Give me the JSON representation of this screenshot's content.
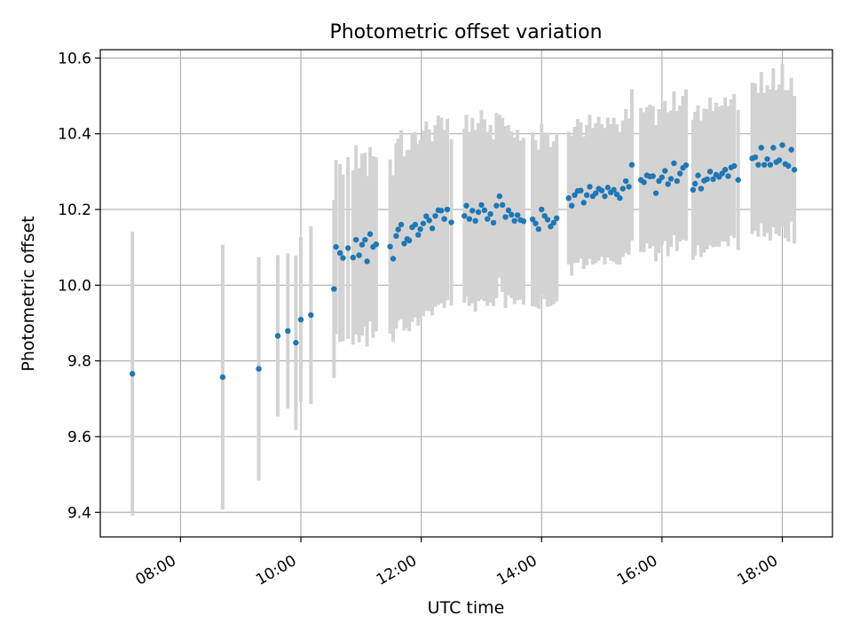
{
  "chart_data": {
    "type": "scatter",
    "title": "Photometric offset variation",
    "xlabel": "UTC time",
    "ylabel": "Photometric offset",
    "x_unit": "hours UTC",
    "xlim": [
      "06:40",
      "18:50"
    ],
    "ylim": [
      9.335,
      10.622
    ],
    "xticks": [
      "08:00",
      "10:00",
      "12:00",
      "14:00",
      "16:00",
      "18:00"
    ],
    "yticks": [
      "9.4",
      "9.6",
      "9.8",
      "10.0",
      "10.2",
      "10.4",
      "10.6"
    ],
    "grid": true,
    "colors": {
      "point": "#1f77b4",
      "errorbar": "#d3d3d3",
      "grid": "#b0b0b0"
    },
    "series": [
      {
        "x": [
          "07:12",
          "08:42",
          "09:18",
          "09:37",
          "09:47",
          "09:55",
          "10:00",
          "10:10",
          "10:33",
          "10:35",
          "10:39",
          "10:42",
          "10:47",
          "10:52",
          "10:55",
          "10:58",
          "11:01",
          "11:04",
          "11:06",
          "11:09",
          "11:12",
          "11:15",
          "11:29",
          "11:32",
          "11:35",
          "11:37",
          "11:40",
          "11:43",
          "11:46",
          "11:48",
          "11:51",
          "11:54",
          "11:57",
          "11:59",
          "12:02",
          "12:05",
          "12:08",
          "12:11",
          "12:14",
          "12:17",
          "12:20",
          "12:23",
          "12:26",
          "12:30",
          "12:43",
          "12:45",
          "12:48",
          "12:51",
          "12:54",
          "12:57",
          "13:00",
          "13:03",
          "13:06",
          "13:09",
          "13:12",
          "13:15",
          "13:18",
          "13:21",
          "13:24",
          "13:27",
          "13:30",
          "13:33",
          "13:36",
          "13:39",
          "13:42",
          "13:51",
          "13:54",
          "13:57",
          "14:00",
          "14:03",
          "14:06",
          "14:09",
          "14:12",
          "14:15",
          "14:27",
          "14:30",
          "14:33",
          "14:36",
          "14:39",
          "14:42",
          "14:45",
          "14:48",
          "14:51",
          "14:54",
          "14:57",
          "15:00",
          "15:03",
          "15:06",
          "15:09",
          "15:12",
          "15:15",
          "15:18",
          "15:21",
          "15:24",
          "15:27",
          "15:30",
          "15:39",
          "15:42",
          "15:45",
          "15:48",
          "15:51",
          "15:54",
          "15:57",
          "16:00",
          "16:03",
          "16:06",
          "16:09",
          "16:12",
          "16:15",
          "16:18",
          "16:21",
          "16:24",
          "16:31",
          "16:33",
          "16:36",
          "16:39",
          "16:42",
          "16:45",
          "16:48",
          "16:51",
          "16:54",
          "16:57",
          "17:00",
          "17:03",
          "17:06",
          "17:09",
          "17:12",
          "17:16",
          "17:30",
          "17:33",
          "17:36",
          "17:39",
          "17:42",
          "17:45",
          "17:48",
          "17:51",
          "17:54",
          "17:57",
          "18:00",
          "18:03",
          "18:06",
          "18:09",
          "18:12"
        ],
        "y": [
          9.766,
          9.757,
          9.779,
          9.866,
          9.879,
          9.848,
          9.909,
          9.921,
          9.99,
          10.101,
          10.085,
          10.072,
          10.098,
          10.073,
          10.12,
          10.079,
          10.107,
          10.12,
          10.063,
          10.135,
          10.101,
          10.108,
          10.102,
          10.07,
          10.13,
          10.147,
          10.16,
          10.11,
          10.122,
          10.118,
          10.153,
          10.16,
          10.133,
          10.148,
          10.163,
          10.182,
          10.171,
          10.15,
          10.183,
          10.198,
          10.197,
          10.175,
          10.2,
          10.166,
          10.183,
          10.21,
          10.175,
          10.197,
          10.17,
          10.193,
          10.212,
          10.198,
          10.175,
          10.188,
          10.165,
          10.21,
          10.235,
          10.212,
          10.18,
          10.198,
          10.186,
          10.17,
          10.185,
          10.172,
          10.169,
          10.174,
          10.163,
          10.148,
          10.2,
          10.183,
          10.173,
          10.155,
          10.165,
          10.177,
          10.23,
          10.21,
          10.238,
          10.249,
          10.25,
          10.218,
          10.238,
          10.26,
          10.235,
          10.243,
          10.255,
          10.25,
          10.235,
          10.258,
          10.245,
          10.252,
          10.24,
          10.23,
          10.255,
          10.275,
          10.26,
          10.318,
          10.278,
          10.272,
          10.29,
          10.287,
          10.288,
          10.243,
          10.275,
          10.285,
          10.302,
          10.267,
          10.281,
          10.322,
          10.275,
          10.295,
          10.31,
          10.317,
          10.252,
          10.268,
          10.29,
          10.255,
          10.276,
          10.28,
          10.3,
          10.28,
          10.292,
          10.286,
          10.295,
          10.305,
          10.288,
          10.311,
          10.315,
          10.278,
          10.335,
          10.338,
          10.318,
          10.363,
          10.318,
          10.333,
          10.318,
          10.363,
          10.325,
          10.33,
          10.37,
          10.32,
          10.315,
          10.358,
          10.305
        ],
        "yerr": [
          0.375,
          0.35,
          0.295,
          0.213,
          0.205,
          0.23,
          0.218,
          0.235,
          0.235,
          0.23,
          0.235,
          0.22,
          0.24,
          0.23,
          0.25,
          0.23,
          0.24,
          0.23,
          0.225,
          0.23,
          0.24,
          0.23,
          0.23,
          0.22,
          0.245,
          0.24,
          0.25,
          0.23,
          0.235,
          0.24,
          0.25,
          0.245,
          0.24,
          0.235,
          0.245,
          0.25,
          0.24,
          0.23,
          0.24,
          0.25,
          0.245,
          0.235,
          0.24,
          0.22,
          0.23,
          0.24,
          0.23,
          0.245,
          0.24,
          0.235,
          0.25,
          0.24,
          0.23,
          0.235,
          0.22,
          0.245,
          0.215,
          0.23,
          0.24,
          0.225,
          0.22,
          0.22,
          0.225,
          0.21,
          0.22,
          0.23,
          0.22,
          0.21,
          0.225,
          0.22,
          0.23,
          0.21,
          0.215,
          0.22,
          0.175,
          0.185,
          0.18,
          0.19,
          0.18,
          0.175,
          0.185,
          0.19,
          0.18,
          0.185,
          0.19,
          0.175,
          0.18,
          0.185,
          0.18,
          0.19,
          0.185,
          0.175,
          0.18,
          0.19,
          0.18,
          0.2,
          0.19,
          0.185,
          0.18,
          0.19,
          0.185,
          0.18,
          0.19,
          0.18,
          0.185,
          0.19,
          0.18,
          0.19,
          0.185,
          0.18,
          0.19,
          0.2,
          0.185,
          0.19,
          0.185,
          0.18,
          0.19,
          0.185,
          0.195,
          0.18,
          0.19,
          0.185,
          0.18,
          0.19,
          0.185,
          0.18,
          0.19,
          0.185,
          0.2,
          0.195,
          0.19,
          0.2,
          0.19,
          0.195,
          0.2,
          0.21,
          0.19,
          0.2,
          0.215,
          0.195,
          0.2,
          0.19,
          0.195
        ]
      }
    ]
  }
}
